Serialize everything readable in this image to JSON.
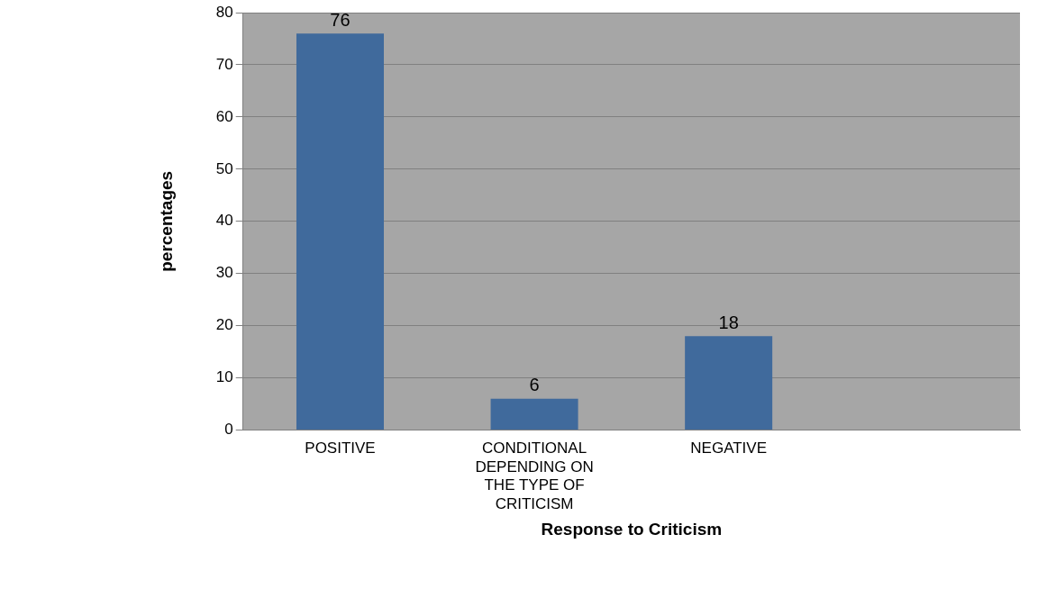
{
  "chart_data": {
    "type": "bar",
    "xlabel": "Response to Criticism",
    "ylabel": "percentages",
    "categories": [
      "POSITIVE",
      "CONDITIONAL DEPENDING ON THE TYPE OF CRITICISM",
      "NEGATIVE",
      null
    ],
    "values": [
      76,
      6,
      18,
      null
    ],
    "color": "#406a9c",
    "ylim": [
      0,
      80
    ],
    "yticks": [
      0,
      10,
      20,
      30,
      40,
      50,
      60,
      70,
      80
    ],
    "grid": "y",
    "legend": false,
    "data_labels": true
  }
}
